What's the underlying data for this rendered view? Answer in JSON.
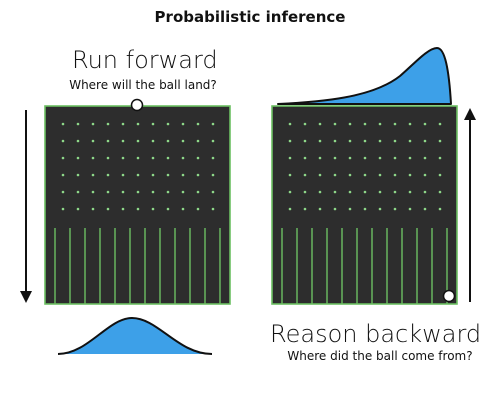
{
  "title": "Probabilistic inference",
  "forward": {
    "heading": "Run forward",
    "question": "Where will the ball land?",
    "arrow_direction": "down",
    "distribution_position": "bottom"
  },
  "backward": {
    "heading": "Reason backward",
    "question": "Where did the ball come from?",
    "arrow_direction": "up",
    "distribution_position": "top"
  },
  "colors": {
    "board": "#2d2d2d",
    "pegs": "#8ed889",
    "slots": "#6cbf62",
    "distribution": "#3da0e8",
    "ball": "#ffffff",
    "background": "#ffffff"
  },
  "board": {
    "peg_rows": 6,
    "peg_columns": 11,
    "slot_dividers": 12
  }
}
